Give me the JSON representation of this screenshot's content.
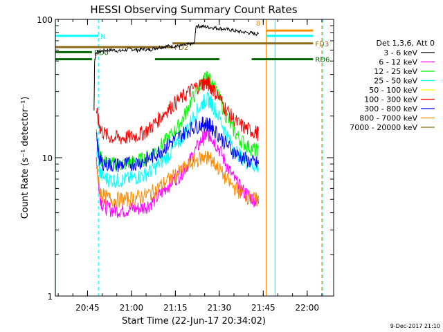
{
  "chart_data": {
    "type": "line",
    "title": "HESSI Observing Summary Count Rates",
    "xlabel": "Start Time (22-Jun-17 20:34:02)",
    "ylabel": "Count Rate (s⁻¹ detector⁻¹)",
    "y_scale": "log",
    "ylim": [
      1,
      100
    ],
    "xlim_minutes_after_start": [
      0,
      95
    ],
    "x_ticks": [
      {
        "label": "20:45",
        "t": 10.97
      },
      {
        "label": "21:00",
        "t": 25.97
      },
      {
        "label": "21:15",
        "t": 40.97
      },
      {
        "label": "21:30",
        "t": 55.97
      },
      {
        "label": "21:45",
        "t": 70.97
      },
      {
        "label": "22:00",
        "t": 85.97
      }
    ],
    "y_ticks": [
      {
        "label": "1",
        "v": 1
      },
      {
        "label": "10",
        "v": 10
      },
      {
        "label": "100",
        "v": 100
      }
    ],
    "legend_title": "Det 1,3,6, Att 0",
    "legend_placement": "right",
    "series": [
      {
        "name": "3 - 6 keV",
        "color": "#000000",
        "points": [
          [
            13.2,
            22
          ],
          [
            13.4,
            50
          ],
          [
            14,
            58
          ],
          [
            16,
            59
          ],
          [
            18,
            60
          ],
          [
            20,
            60
          ],
          [
            22,
            59
          ],
          [
            24,
            60
          ],
          [
            26,
            61
          ],
          [
            28,
            60
          ],
          [
            30,
            61
          ],
          [
            32,
            60
          ],
          [
            34,
            62
          ],
          [
            36,
            63
          ],
          [
            38,
            64
          ],
          [
            40,
            64
          ],
          [
            42,
            64
          ],
          [
            44,
            65
          ],
          [
            46,
            66
          ],
          [
            47.5,
            67
          ],
          [
            48,
            90
          ],
          [
            50,
            89
          ],
          [
            52,
            88
          ],
          [
            54,
            87
          ],
          [
            56,
            86
          ],
          [
            58,
            85
          ],
          [
            60,
            84
          ],
          [
            62,
            82
          ],
          [
            64,
            81
          ],
          [
            66,
            80
          ],
          [
            68,
            79
          ],
          [
            69.5,
            78
          ]
        ]
      },
      {
        "name": "6 - 12 keV",
        "color": "#ff00ff",
        "points": [
          [
            14,
            10
          ],
          [
            15,
            5.6
          ],
          [
            16,
            4.6
          ],
          [
            18,
            4.3
          ],
          [
            20,
            4.2
          ],
          [
            22,
            4.2
          ],
          [
            24,
            4.2
          ],
          [
            26,
            4.3
          ],
          [
            28,
            4.3
          ],
          [
            30,
            4.4
          ],
          [
            32,
            4.6
          ],
          [
            34,
            5.0
          ],
          [
            36,
            5.5
          ],
          [
            38,
            6.2
          ],
          [
            40,
            6.8
          ],
          [
            42,
            7.4
          ],
          [
            44,
            8.3
          ],
          [
            46,
            9.6
          ],
          [
            48,
            11.5
          ],
          [
            50,
            13.5
          ],
          [
            51,
            14.5
          ],
          [
            52,
            15
          ],
          [
            53,
            14.5
          ],
          [
            54,
            13.5
          ],
          [
            56,
            11.5
          ],
          [
            58,
            9.3
          ],
          [
            60,
            7.7
          ],
          [
            62,
            6.5
          ],
          [
            64,
            5.8
          ],
          [
            66,
            5.3
          ],
          [
            68,
            5.0
          ],
          [
            69.5,
            4.8
          ]
        ]
      },
      {
        "name": "12 - 25 keV",
        "color": "#00ff00",
        "points": [
          [
            14,
            17
          ],
          [
            15,
            10.5
          ],
          [
            16,
            9.5
          ],
          [
            18,
            9.2
          ],
          [
            20,
            9.0
          ],
          [
            22,
            9.0
          ],
          [
            24,
            9.1
          ],
          [
            26,
            9.3
          ],
          [
            28,
            9.5
          ],
          [
            30,
            9.8
          ],
          [
            32,
            10.3
          ],
          [
            34,
            11.2
          ],
          [
            36,
            12.3
          ],
          [
            38,
            13.5
          ],
          [
            40,
            15
          ],
          [
            42,
            17
          ],
          [
            44,
            20
          ],
          [
            46,
            25
          ],
          [
            48,
            30
          ],
          [
            50,
            35
          ],
          [
            51,
            37
          ],
          [
            52,
            38
          ],
          [
            53,
            36
          ],
          [
            54,
            33
          ],
          [
            56,
            27
          ],
          [
            58,
            21
          ],
          [
            60,
            17
          ],
          [
            62,
            14.5
          ],
          [
            64,
            13
          ],
          [
            66,
            12
          ],
          [
            68,
            11.5
          ],
          [
            69.5,
            11
          ]
        ]
      },
      {
        "name": "25 - 50 keV",
        "color": "#00ffff",
        "points": [
          [
            14,
            12
          ],
          [
            15,
            8.2
          ],
          [
            16,
            7.3
          ],
          [
            18,
            7.0
          ],
          [
            20,
            6.9
          ],
          [
            22,
            6.9
          ],
          [
            24,
            7.0
          ],
          [
            26,
            7.1
          ],
          [
            28,
            7.3
          ],
          [
            30,
            7.5
          ],
          [
            32,
            7.9
          ],
          [
            34,
            8.5
          ],
          [
            36,
            9.3
          ],
          [
            38,
            10.2
          ],
          [
            40,
            11.3
          ],
          [
            42,
            12.8
          ],
          [
            44,
            15
          ],
          [
            46,
            18
          ],
          [
            48,
            21.5
          ],
          [
            50,
            24.5
          ],
          [
            51,
            26
          ],
          [
            52,
            26.5
          ],
          [
            53,
            25.5
          ],
          [
            54,
            23.5
          ],
          [
            56,
            19.5
          ],
          [
            58,
            15.5
          ],
          [
            60,
            12.8
          ],
          [
            62,
            11
          ],
          [
            64,
            9.9
          ],
          [
            66,
            9.2
          ],
          [
            68,
            8.8
          ],
          [
            69.5,
            8.6
          ]
        ]
      },
      {
        "name": "50 - 100 keV",
        "color": "#ffff00",
        "points": []
      },
      {
        "name": "100 - 300 keV",
        "color": "#ff0000",
        "points": [
          [
            14,
            22
          ],
          [
            15,
            17
          ],
          [
            16,
            15.5
          ],
          [
            18,
            14.3
          ],
          [
            20,
            14
          ],
          [
            22,
            13.9
          ],
          [
            24,
            14
          ],
          [
            26,
            14.2
          ],
          [
            28,
            14.6
          ],
          [
            30,
            15.2
          ],
          [
            32,
            16.2
          ],
          [
            34,
            17.8
          ],
          [
            36,
            19.8
          ],
          [
            38,
            22
          ],
          [
            40,
            24
          ],
          [
            42,
            26
          ],
          [
            44,
            28
          ],
          [
            46,
            30.5
          ],
          [
            48,
            32.5
          ],
          [
            50,
            34
          ],
          [
            51,
            35
          ],
          [
            52,
            34.5
          ],
          [
            53,
            33
          ],
          [
            54,
            31
          ],
          [
            56,
            27
          ],
          [
            58,
            23
          ],
          [
            60,
            20
          ],
          [
            62,
            18
          ],
          [
            64,
            16.8
          ],
          [
            66,
            16
          ],
          [
            68,
            15.5
          ],
          [
            69.5,
            15
          ]
        ]
      },
      {
        "name": "300 - 800 keV",
        "color": "#0000ff",
        "points": [
          [
            14,
            14
          ],
          [
            15,
            10
          ],
          [
            16,
            9.3
          ],
          [
            18,
            9.0
          ],
          [
            20,
            8.9
          ],
          [
            22,
            8.9
          ],
          [
            24,
            9.0
          ],
          [
            26,
            9.1
          ],
          [
            28,
            9.3
          ],
          [
            30,
            9.5
          ],
          [
            32,
            9.9
          ],
          [
            34,
            10.5
          ],
          [
            36,
            11.3
          ],
          [
            38,
            12.2
          ],
          [
            40,
            13.2
          ],
          [
            42,
            14.2
          ],
          [
            44,
            15.2
          ],
          [
            46,
            16.2
          ],
          [
            48,
            17
          ],
          [
            50,
            17.5
          ],
          [
            51,
            17.8
          ],
          [
            52,
            17.6
          ],
          [
            53,
            17
          ],
          [
            54,
            16.2
          ],
          [
            56,
            14.5
          ],
          [
            58,
            12.8
          ],
          [
            60,
            11.5
          ],
          [
            62,
            10.6
          ],
          [
            64,
            10
          ],
          [
            66,
            9.5
          ],
          [
            68,
            9.2
          ],
          [
            69.5,
            9
          ]
        ]
      },
      {
        "name": "800 - 7000 keV",
        "color": "#ff8c00",
        "points": [
          [
            14,
            9
          ],
          [
            15,
            6.0
          ],
          [
            16,
            5.4
          ],
          [
            18,
            5.1
          ],
          [
            20,
            5.0
          ],
          [
            22,
            5.0
          ],
          [
            24,
            5.0
          ],
          [
            26,
            5.1
          ],
          [
            28,
            5.2
          ],
          [
            30,
            5.3
          ],
          [
            32,
            5.5
          ],
          [
            34,
            5.8
          ],
          [
            36,
            6.3
          ],
          [
            38,
            6.8
          ],
          [
            40,
            7.3
          ],
          [
            42,
            7.8
          ],
          [
            44,
            8.4
          ],
          [
            46,
            9.0
          ],
          [
            48,
            9.6
          ],
          [
            50,
            10.0
          ],
          [
            51,
            10.2
          ],
          [
            52,
            10.1
          ],
          [
            53,
            9.8
          ],
          [
            54,
            9.3
          ],
          [
            56,
            8.3
          ],
          [
            58,
            7.2
          ],
          [
            60,
            6.4
          ],
          [
            62,
            5.9
          ],
          [
            64,
            5.5
          ],
          [
            66,
            5.2
          ],
          [
            68,
            5.0
          ],
          [
            69.5,
            4.9
          ]
        ]
      },
      {
        "name": "7000 - 20000 keV",
        "color": "#8b6914",
        "points": []
      }
    ],
    "flag_bars": [
      {
        "label": "N",
        "color": "#00ffff",
        "y_value": 76,
        "segments": [
          [
            0,
            14.7
          ]
        ]
      },
      {
        "label": "",
        "color": "#00ffff",
        "y_value": 76,
        "segments": [
          [
            72,
            88
          ]
        ]
      },
      {
        "label": "",
        "color": "#ff8c00",
        "y_value": 83,
        "segments": [
          [
            72,
            88
          ]
        ]
      },
      {
        "label": "FD2",
        "color": "#8b6914",
        "y_value": 63,
        "segments": [
          [
            0,
            40
          ]
        ]
      },
      {
        "label": "FD3",
        "color": "#8b6914",
        "y_value": 67,
        "segments": [
          [
            40,
            88
          ]
        ]
      },
      {
        "label": "RD0",
        "color": "#006400",
        "y_value": 58,
        "segments": [
          [
            0,
            12.5
          ]
        ]
      },
      {
        "label": "RD6",
        "color": "#006400",
        "y_value": 51.5,
        "segments": [
          [
            0,
            12.5
          ],
          [
            34,
            56
          ],
          [
            67,
            88
          ]
        ]
      }
    ],
    "vertical_lines": [
      {
        "t": 0.0,
        "color": "#00ffff",
        "style": "solid"
      },
      {
        "t": 14.7,
        "color": "#00ffff",
        "style": "dashed"
      },
      {
        "t": 72.0,
        "color": "#ff8c00",
        "style": "solid"
      },
      {
        "t": 75.0,
        "color": "#00ffff",
        "style": "solid"
      },
      {
        "t": 91.0,
        "color": "#ff8c00",
        "style": "dashed"
      },
      {
        "t": 91.2,
        "color": "#00ffff",
        "style": "dashed"
      }
    ],
    "annotations": [
      {
        "text": "8",
        "color": "#ff8c00",
        "t": 68.5,
        "y_value": 90
      }
    ]
  },
  "footer": {
    "timestamp": "9-Dec-2017 21:10"
  }
}
